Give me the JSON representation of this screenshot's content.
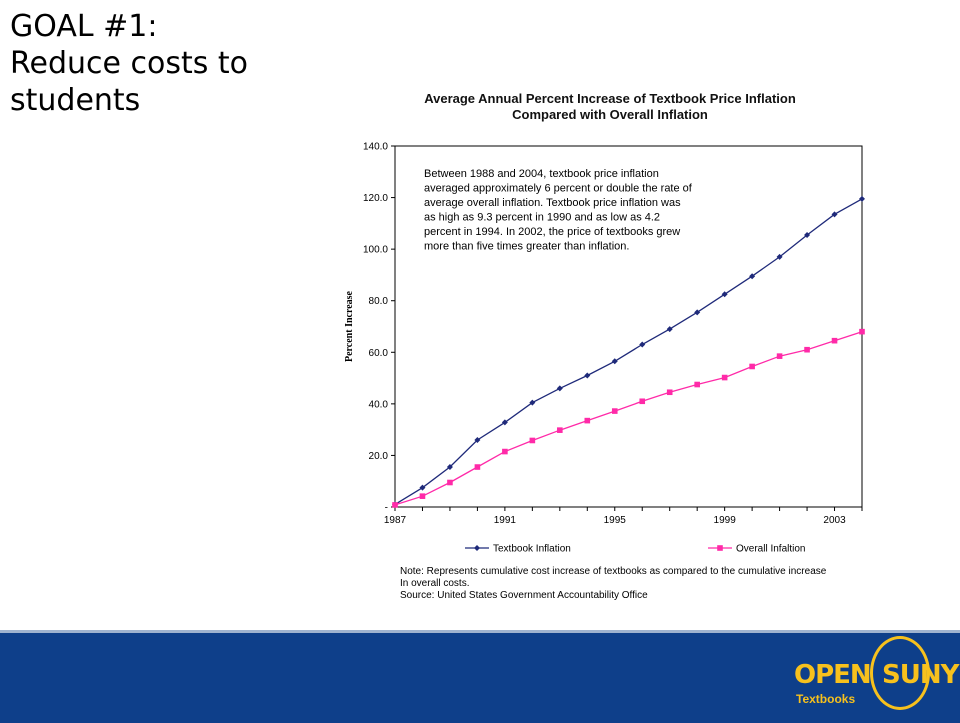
{
  "slide": {
    "title_lines": [
      "GOAL #1:",
      "Reduce costs to",
      "students"
    ]
  },
  "footer": {
    "logo_open": "OPEN",
    "logo_suny": "SUNY",
    "logo_sub": "Textbooks"
  },
  "chart_data": {
    "type": "line",
    "title_lines": [
      "Average Annual Percent Increase of Textbook Price Inflation",
      "Compared with Overall Inflation"
    ],
    "ylabel": "Percent Increase",
    "xlabel": "",
    "ylim": [
      0,
      140
    ],
    "yticks": [
      "-",
      "20.0",
      "40.0",
      "60.0",
      "80.0",
      "100.0",
      "120.0",
      "140.0"
    ],
    "x": [
      1987,
      1988,
      1989,
      1990,
      1991,
      1992,
      1993,
      1994,
      1995,
      1996,
      1997,
      1998,
      1999,
      2000,
      2001,
      2002,
      2003,
      2004
    ],
    "xticks": [
      "1987",
      "1991",
      "1995",
      "1999",
      "2003"
    ],
    "grid": false,
    "legend_position": "bottom",
    "series": [
      {
        "name": "Textbook Inflation",
        "color": "#1f2a7a",
        "marker": "diamond",
        "values": [
          1.0,
          7.5,
          15.5,
          26.0,
          32.8,
          40.5,
          46.0,
          51.0,
          56.5,
          63.0,
          69.0,
          75.5,
          82.5,
          89.5,
          97.0,
          105.5,
          113.5,
          119.5
        ]
      },
      {
        "name": "Overall Infaltion",
        "color": "#ff2aa8",
        "marker": "square",
        "values": [
          0.8,
          4.2,
          9.5,
          15.5,
          21.5,
          25.8,
          29.8,
          33.5,
          37.2,
          41.0,
          44.5,
          47.5,
          50.2,
          54.5,
          58.5,
          61.0,
          64.5,
          68.0
        ]
      }
    ],
    "annotation_lines": [
      "Between 1988 and 2004, textbook price inflation",
      "averaged approximately 6 percent or double the rate of",
      "average overall inflation.  Textbook price inflation was",
      "as high as 9.3 percent in 1990 and as low as 4.2",
      "percent in 1994.  In 2002, the price of textbooks grew",
      "more than five times greater than inflation."
    ],
    "note_lines": [
      "Note:  Represents cumulative cost increase of textbooks as compared to the cumulative increase",
      "In overall costs.",
      "Source:  United States Government Accountability Office"
    ]
  }
}
